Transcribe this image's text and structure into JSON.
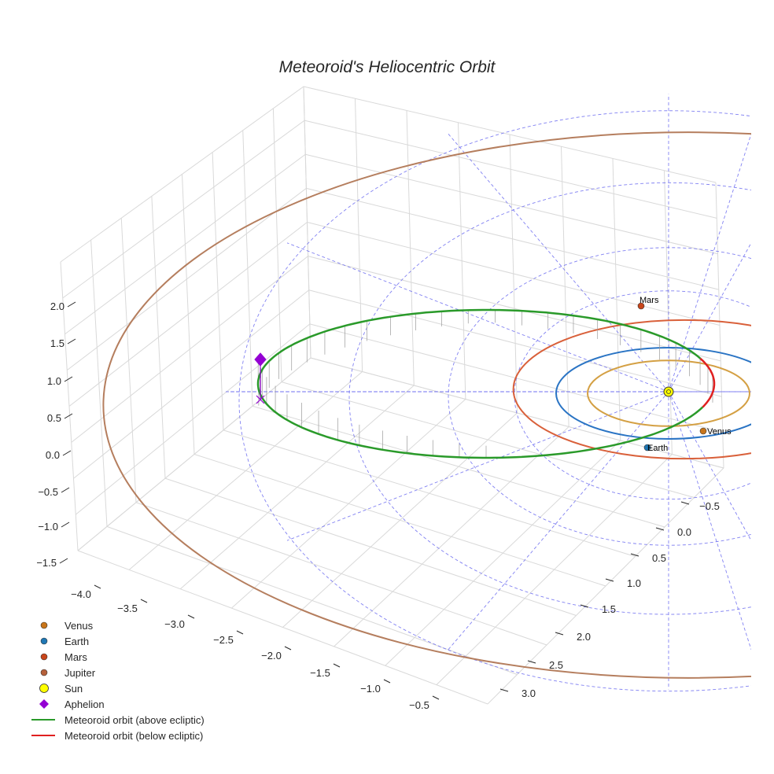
{
  "chart_data": {
    "type": "orbit-3d",
    "title": "Meteoroid's Heliocentric Orbit",
    "axes": {
      "x": {
        "ticks": [
          "−4.0",
          "−3.5",
          "−3.0",
          "−2.5",
          "−2.0",
          "−1.5",
          "−1.0",
          "−0.5"
        ]
      },
      "y": {
        "ticks": [
          "−0.5",
          "0.0",
          "0.5",
          "1.0",
          "1.5",
          "2.0",
          "2.5",
          "3.0"
        ]
      },
      "z": {
        "ticks": [
          "2.0",
          "1.5",
          "1.0",
          "0.5",
          "0.0",
          "−0.5",
          "−1.0",
          "−1.5"
        ]
      },
      "xlim": [
        -4.2,
        -0.2
      ],
      "ylim": [
        -0.8,
        3.2
      ],
      "zlim": [
        -1.7,
        2.2
      ],
      "grid": true
    },
    "bodies": [
      {
        "name": "Venus",
        "label": "Venus",
        "orbit_radius_au": 0.72,
        "color": "#d4a044",
        "marker_color": "#c8751a"
      },
      {
        "name": "Earth",
        "label": "Earth",
        "orbit_radius_au": 1.0,
        "color": "#2a74c4",
        "marker_color": "#1f77b4"
      },
      {
        "name": "Mars",
        "label": "Mars",
        "orbit_radius_au": 1.52,
        "color": "#d9603a",
        "marker_color": "#c8451a"
      },
      {
        "name": "Jupiter",
        "orbit_radius_au": 5.2,
        "color": "#b57e5e",
        "marker_color": "#b5603a"
      }
    ],
    "sun": {
      "name": "Sun",
      "color": "#ffff00"
    },
    "aphelion": {
      "name": "Aphelion",
      "color": "#9400d3"
    },
    "meteoroid": {
      "above_label": "Meteoroid orbit (above ecliptic)",
      "below_label": "Meteoroid orbit (below ecliptic)",
      "above_color": "#2a9a2a",
      "below_color": "#e02020"
    },
    "reference_grid_color": "#6b6bf0",
    "legend": [
      {
        "label": "Venus",
        "kind": "dot",
        "color": "#c8751a"
      },
      {
        "label": "Earth",
        "kind": "dot",
        "color": "#1f77b4"
      },
      {
        "label": "Mars",
        "kind": "dot",
        "color": "#c8451a"
      },
      {
        "label": "Jupiter",
        "kind": "dot",
        "color": "#b5603a"
      },
      {
        "label": "Sun",
        "kind": "sun",
        "color": "#ffff00"
      },
      {
        "label": "Aphelion",
        "kind": "diamond",
        "color": "#9400d3"
      },
      {
        "label": "Meteoroid orbit (above ecliptic)",
        "kind": "line",
        "color": "#2a9a2a"
      },
      {
        "label": "Meteoroid orbit (below ecliptic)",
        "kind": "line",
        "color": "#e02020"
      }
    ]
  }
}
